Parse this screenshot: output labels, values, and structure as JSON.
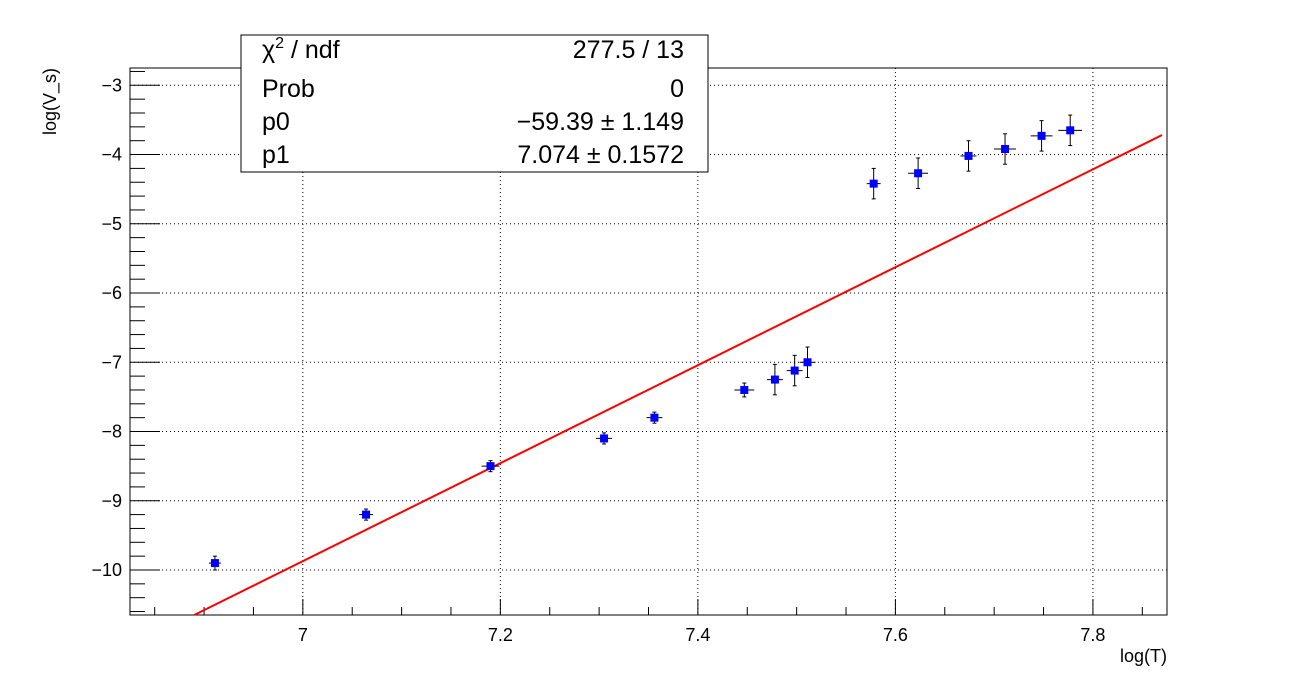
{
  "chart_data": {
    "type": "scatter",
    "title": "",
    "xlabel": "log(T)",
    "ylabel": "log(V_s)",
    "xlim": [
      6.825,
      7.875
    ],
    "ylim": [
      -10.65,
      -2.75
    ],
    "grid": true,
    "x_ticks": [
      {
        "value": 7.0,
        "label": "7"
      },
      {
        "value": 7.2,
        "label": "7.2"
      },
      {
        "value": 7.4,
        "label": "7.4"
      },
      {
        "value": 7.6,
        "label": "7.6"
      },
      {
        "value": 7.8,
        "label": "7.8"
      }
    ],
    "y_ticks": [
      {
        "value": -3,
        "label": "−3"
      },
      {
        "value": -4,
        "label": "−4"
      },
      {
        "value": -5,
        "label": "−5"
      },
      {
        "value": -6,
        "label": "−6"
      },
      {
        "value": -7,
        "label": "−7"
      },
      {
        "value": -8,
        "label": "−8"
      },
      {
        "value": -9,
        "label": "−9"
      },
      {
        "value": -10,
        "label": "−10"
      }
    ],
    "points": [
      {
        "x": 6.911,
        "y": -9.9,
        "xerr": 0.002,
        "yerr": 0.1
      },
      {
        "x": 7.064,
        "y": -9.2,
        "xerr": 0.003,
        "yerr": 0.08
      },
      {
        "x": 7.19,
        "y": -8.5,
        "xerr": 0.005,
        "yerr": 0.08
      },
      {
        "x": 7.305,
        "y": -8.1,
        "xerr": 0.004,
        "yerr": 0.08
      },
      {
        "x": 7.356,
        "y": -7.8,
        "xerr": 0.004,
        "yerr": 0.08
      },
      {
        "x": 7.447,
        "y": -7.4,
        "xerr": 0.006,
        "yerr": 0.1
      },
      {
        "x": 7.478,
        "y": -7.25,
        "xerr": 0.004,
        "yerr": 0.22
      },
      {
        "x": 7.498,
        "y": -7.12,
        "xerr": 0.004,
        "yerr": 0.22
      },
      {
        "x": 7.511,
        "y": -7.0,
        "xerr": 0.004,
        "yerr": 0.22
      },
      {
        "x": 7.578,
        "y": -4.42,
        "xerr": 0.003,
        "yerr": 0.22
      },
      {
        "x": 7.623,
        "y": -4.27,
        "xerr": 0.006,
        "yerr": 0.22
      },
      {
        "x": 7.674,
        "y": -4.02,
        "xerr": 0.004,
        "yerr": 0.22
      },
      {
        "x": 7.711,
        "y": -3.92,
        "xerr": 0.007,
        "yerr": 0.22
      },
      {
        "x": 7.748,
        "y": -3.73,
        "xerr": 0.007,
        "yerr": 0.22
      },
      {
        "x": 7.777,
        "y": -3.65,
        "xerr": 0.008,
        "yerr": 0.22
      }
    ],
    "fit": {
      "p0": -59.39,
      "p1": 7.074,
      "x_start": 6.825,
      "x_end": 7.87
    },
    "colors": {
      "points": "#0000ff",
      "fit": "#ff0000",
      "errors": "#000000"
    }
  },
  "stats_box": {
    "rows": [
      {
        "label": "χ",
        "sup": "2",
        "suffix": " / ndf",
        "value": "277.5 / 13"
      },
      {
        "label": "Prob",
        "sup": "",
        "suffix": "",
        "value": "0"
      },
      {
        "label": "p0",
        "sup": "",
        "suffix": "",
        "value": "−59.39 ± 1.149"
      },
      {
        "label": "p1",
        "sup": "",
        "suffix": "",
        "value": "7.074 ± 0.1572"
      }
    ]
  }
}
